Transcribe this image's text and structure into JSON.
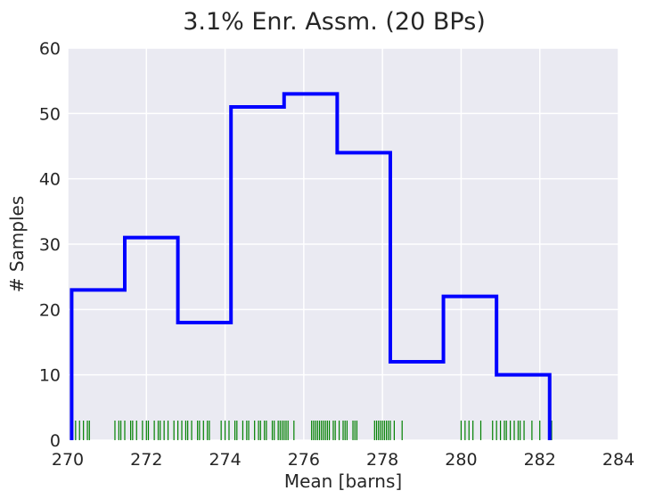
{
  "chart_data": {
    "type": "histogram",
    "title": "3.1% Enr. Assm. (20 BPs)",
    "xlabel": "Mean [barns]",
    "ylabel": "# Samples",
    "xlim": [
      270,
      284
    ],
    "ylim": [
      0,
      60
    ],
    "xticks": [
      "270",
      "272",
      "274",
      "276",
      "278",
      "280",
      "282",
      "284"
    ],
    "yticks": [
      "0",
      "10",
      "20",
      "30",
      "40",
      "50",
      "60"
    ],
    "grid": true,
    "background": "#EAEAF2",
    "series": [
      {
        "style": "step",
        "color": "#0000FF",
        "bin_edges": [
          270.1,
          271.45,
          272.8,
          274.15,
          275.5,
          276.85,
          278.2,
          279.55,
          280.9,
          282.25
        ],
        "counts": [
          23,
          31,
          18,
          51,
          53,
          44,
          12,
          22,
          10
        ]
      }
    ],
    "rug": {
      "color": "#008000",
      "values": [
        270.2,
        270.3,
        270.4,
        270.5,
        270.55,
        271.2,
        271.3,
        271.35,
        271.45,
        271.6,
        271.65,
        271.75,
        271.9,
        272.0,
        272.05,
        272.2,
        272.3,
        272.35,
        272.45,
        272.55,
        272.7,
        272.8,
        272.9,
        273.0,
        273.05,
        273.15,
        273.3,
        273.35,
        273.45,
        273.55,
        273.6,
        273.9,
        274.0,
        274.1,
        274.25,
        274.3,
        274.45,
        274.55,
        274.6,
        274.75,
        274.85,
        274.9,
        275.0,
        275.05,
        275.2,
        275.25,
        275.35,
        275.4,
        275.45,
        275.5,
        275.55,
        275.6,
        275.75,
        276.2,
        276.25,
        276.3,
        276.35,
        276.4,
        276.45,
        276.5,
        276.55,
        276.6,
        276.65,
        276.75,
        276.8,
        276.9,
        277.0,
        277.05,
        277.1,
        277.25,
        277.3,
        277.35,
        277.8,
        277.85,
        277.9,
        277.95,
        278.0,
        278.05,
        278.1,
        278.15,
        278.2,
        278.3,
        278.5,
        280.0,
        280.1,
        280.2,
        280.3,
        280.5,
        280.8,
        280.9,
        281.0,
        281.1,
        281.15,
        281.25,
        281.35,
        281.45,
        281.5,
        281.6,
        281.8,
        282.0,
        282.25,
        282.3
      ]
    }
  }
}
